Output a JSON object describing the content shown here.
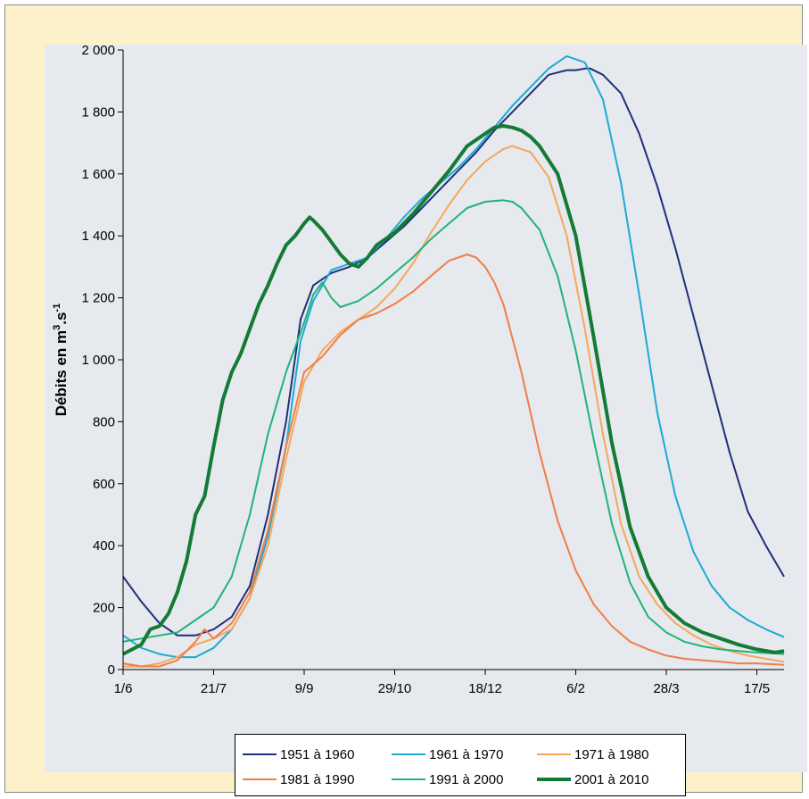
{
  "chart_data": {
    "type": "line",
    "title": "",
    "xlabel": "",
    "ylabel": "Débits en m3.s-1",
    "ylabel_parts": {
      "main": "Débits en m",
      "sup1": "3",
      "mid": ".s",
      "sup2": "-1"
    },
    "ylim": [
      0,
      2000
    ],
    "y_ticks": [
      0,
      200,
      400,
      600,
      800,
      1000,
      1200,
      1400,
      1600,
      1800,
      2000
    ],
    "y_tick_labels": [
      "0",
      "200",
      "400",
      "600",
      "800",
      "1 000",
      "1 200",
      "1 400",
      "1 600",
      "1 800",
      "2 000"
    ],
    "x_tick_labels": [
      "1/6",
      "21/7",
      "9/9",
      "29/10",
      "18/12",
      "6/2",
      "28/3",
      "17/5"
    ],
    "x_tick_days": [
      0,
      50,
      100,
      150,
      200,
      250,
      300,
      350
    ],
    "xlim": [
      0,
      365
    ],
    "grid": false,
    "legend_position": "bottom",
    "series": [
      {
        "name": "1951 à 1960",
        "color": "#1f2f7a",
        "width": 2,
        "x": [
          0,
          10,
          20,
          30,
          40,
          50,
          60,
          70,
          80,
          90,
          98,
          105,
          115,
          125,
          135,
          145,
          155,
          165,
          175,
          185,
          195,
          205,
          215,
          225,
          235,
          245,
          250,
          255,
          258,
          265,
          275,
          285,
          295,
          305,
          315,
          325,
          335,
          345,
          355,
          365
        ],
        "y": [
          300,
          220,
          150,
          110,
          110,
          130,
          170,
          270,
          500,
          800,
          1130,
          1240,
          1280,
          1300,
          1330,
          1380,
          1430,
          1490,
          1550,
          1610,
          1670,
          1740,
          1800,
          1860,
          1920,
          1935,
          1935,
          1940,
          1940,
          1920,
          1860,
          1730,
          1560,
          1360,
          1140,
          920,
          700,
          510,
          400,
          300
        ]
      },
      {
        "name": "1961 à 1970",
        "color": "#1fa9d2",
        "width": 2,
        "x": [
          0,
          10,
          20,
          30,
          40,
          50,
          60,
          70,
          80,
          90,
          98,
          105,
          115,
          125,
          135,
          145,
          155,
          165,
          175,
          185,
          195,
          205,
          215,
          225,
          235,
          245,
          255,
          265,
          275,
          285,
          295,
          305,
          315,
          325,
          335,
          345,
          355,
          365
        ],
        "y": [
          110,
          70,
          50,
          40,
          40,
          70,
          130,
          230,
          430,
          720,
          1060,
          1190,
          1290,
          1310,
          1330,
          1390,
          1460,
          1520,
          1570,
          1620,
          1680,
          1750,
          1820,
          1880,
          1940,
          1980,
          1960,
          1840,
          1570,
          1210,
          830,
          560,
          380,
          270,
          200,
          160,
          130,
          105
        ]
      },
      {
        "name": "1971 à 1980",
        "color": "#f4a85a",
        "width": 2,
        "x": [
          0,
          10,
          20,
          30,
          40,
          50,
          60,
          70,
          80,
          90,
          100,
          110,
          120,
          130,
          140,
          150,
          160,
          170,
          180,
          190,
          200,
          210,
          215,
          225,
          235,
          245,
          255,
          265,
          275,
          285,
          295,
          305,
          315,
          325,
          335,
          345,
          355,
          365
        ],
        "y": [
          10,
          10,
          20,
          40,
          80,
          100,
          130,
          230,
          400,
          680,
          930,
          1030,
          1090,
          1130,
          1170,
          1230,
          1310,
          1410,
          1500,
          1580,
          1640,
          1680,
          1690,
          1670,
          1590,
          1400,
          1100,
          760,
          470,
          300,
          210,
          150,
          110,
          80,
          60,
          45,
          35,
          25
        ]
      },
      {
        "name": "1981 à 1990",
        "color": "#f07e46",
        "width": 2,
        "x": [
          0,
          10,
          20,
          30,
          40,
          45,
          50,
          60,
          70,
          80,
          90,
          100,
          110,
          120,
          130,
          140,
          150,
          160,
          170,
          180,
          190,
          195,
          200,
          205,
          210,
          220,
          230,
          240,
          250,
          260,
          270,
          280,
          290,
          300,
          310,
          320,
          330,
          340,
          350,
          365
        ],
        "y": [
          20,
          10,
          10,
          30,
          90,
          130,
          100,
          150,
          250,
          450,
          720,
          960,
          1010,
          1080,
          1130,
          1150,
          1180,
          1220,
          1270,
          1320,
          1340,
          1330,
          1300,
          1250,
          1180,
          960,
          700,
          480,
          320,
          210,
          140,
          90,
          65,
          45,
          35,
          30,
          25,
          20,
          20,
          15
        ]
      },
      {
        "name": "1991 à 2000",
        "color": "#22b27a",
        "width": 2,
        "x": [
          0,
          10,
          20,
          30,
          40,
          50,
          60,
          70,
          80,
          90,
          100,
          105,
          110,
          115,
          120,
          130,
          140,
          150,
          160,
          170,
          180,
          190,
          200,
          210,
          215,
          220,
          230,
          240,
          250,
          260,
          270,
          280,
          290,
          300,
          310,
          320,
          330,
          340,
          350,
          365
        ],
        "y": [
          90,
          100,
          110,
          120,
          160,
          200,
          300,
          500,
          760,
          960,
          1120,
          1210,
          1250,
          1200,
          1170,
          1190,
          1230,
          1280,
          1330,
          1390,
          1440,
          1490,
          1510,
          1515,
          1510,
          1490,
          1420,
          1270,
          1030,
          740,
          470,
          280,
          170,
          120,
          90,
          75,
          65,
          60,
          55,
          50
        ]
      },
      {
        "name": "2001 à 2010",
        "color": "#157a35",
        "width": 4,
        "x": [
          0,
          10,
          15,
          20,
          25,
          30,
          35,
          40,
          45,
          50,
          55,
          60,
          65,
          70,
          75,
          80,
          85,
          90,
          95,
          100,
          103,
          105,
          110,
          115,
          120,
          125,
          130,
          135,
          140,
          150,
          160,
          170,
          180,
          190,
          200,
          205,
          210,
          215,
          220,
          225,
          230,
          240,
          250,
          260,
          270,
          280,
          290,
          300,
          310,
          320,
          330,
          340,
          350,
          360,
          365
        ],
        "y": [
          50,
          80,
          130,
          140,
          180,
          250,
          350,
          500,
          560,
          720,
          870,
          960,
          1020,
          1100,
          1180,
          1240,
          1310,
          1370,
          1400,
          1440,
          1460,
          1450,
          1420,
          1380,
          1340,
          1310,
          1300,
          1330,
          1370,
          1410,
          1470,
          1540,
          1610,
          1690,
          1730,
          1750,
          1755,
          1750,
          1740,
          1720,
          1690,
          1600,
          1400,
          1070,
          730,
          460,
          300,
          200,
          150,
          120,
          100,
          80,
          65,
          55,
          60
        ]
      }
    ]
  },
  "legend": {
    "items": [
      {
        "label": "1951 à 1960",
        "color": "#1f2f7a",
        "width": 2
      },
      {
        "label": "1961 à 1970",
        "color": "#1fa9d2",
        "width": 2
      },
      {
        "label": "1971 à 1980",
        "color": "#f4a85a",
        "width": 2
      },
      {
        "label": "1981 à 1990",
        "color": "#f07e46",
        "width": 2
      },
      {
        "label": "1991 à 2000",
        "color": "#22b27a",
        "width": 2
      },
      {
        "label": "2001 à 2010",
        "color": "#157a35",
        "width": 4
      }
    ]
  }
}
